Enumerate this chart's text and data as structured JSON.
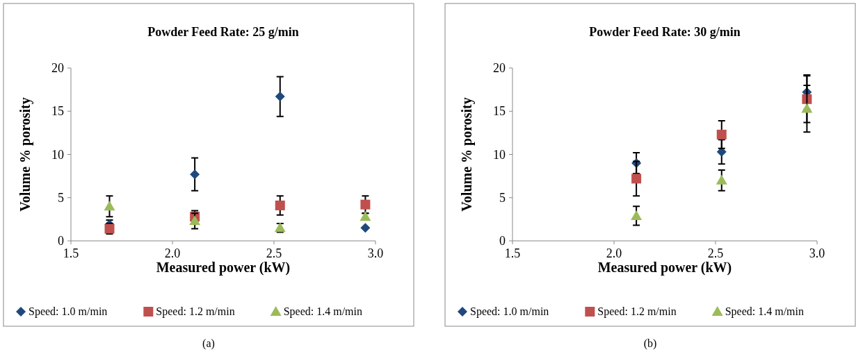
{
  "chart_data": [
    {
      "type": "scatter",
      "title": "Powder Feed Rate: 25 g/min",
      "xlabel": "Measured power (kW)",
      "ylabel": "Volume % porosity",
      "xlim": [
        1.5,
        3.0
      ],
      "xticks": [
        {
          "value": 1.5,
          "label": "1.5"
        },
        {
          "value": 2.0,
          "label": "2.0"
        },
        {
          "value": 2.5,
          "label": "2.5"
        },
        {
          "value": 3.0,
          "label": "3.0"
        }
      ],
      "ylim": [
        0,
        20
      ],
      "yticks": [
        0,
        5,
        10,
        15,
        20
      ],
      "legend": "bottom",
      "grid": false,
      "annotations": [
        "(a)"
      ],
      "series": [
        {
          "name": "Speed: 1.0 m/min",
          "color": "#1f497d",
          "marker": "diamond",
          "x": [
            1.69,
            2.11,
            2.53,
            2.95
          ],
          "values": [
            1.9,
            7.7,
            16.7,
            1.5
          ],
          "errors": [
            0.5,
            1.9,
            2.3,
            null
          ]
        },
        {
          "name": "Speed: 1.2 m/min",
          "color": "#c0504d",
          "marker": "square",
          "x": [
            1.69,
            2.11,
            2.53,
            2.95
          ],
          "values": [
            1.4,
            2.8,
            4.1,
            4.2
          ],
          "errors": [
            0.6,
            0.7,
            1.1,
            1.0
          ]
        },
        {
          "name": "Speed: 1.4 m/min",
          "color": "#9bbb59",
          "marker": "triangle",
          "x": [
            1.69,
            2.11,
            2.53,
            2.95
          ],
          "values": [
            4.0,
            2.3,
            1.5,
            2.8
          ],
          "errors": [
            1.2,
            0.9,
            0.5,
            0.4
          ]
        }
      ]
    },
    {
      "type": "scatter",
      "title": "Powder Feed Rate: 30 g/min",
      "xlabel": "Measured power (kW)",
      "ylabel": "Volume % porosity",
      "xlim": [
        1.5,
        3.0
      ],
      "xticks": [
        {
          "value": 1.5,
          "label": "1.5"
        },
        {
          "value": 2.0,
          "label": "2.0"
        },
        {
          "value": 2.5,
          "label": "2.5"
        },
        {
          "value": 3.0,
          "label": "3.0"
        }
      ],
      "ylim": [
        0,
        20
      ],
      "yticks": [
        0,
        5,
        10,
        15,
        20
      ],
      "legend": "bottom",
      "grid": false,
      "annotations": [
        "(b)"
      ],
      "series": [
        {
          "name": "Speed: 1.0 m/min",
          "color": "#1f497d",
          "marker": "diamond",
          "x": [
            2.11,
            2.53,
            2.95
          ],
          "values": [
            9.0,
            10.3,
            17.2
          ],
          "errors": [
            1.2,
            1.4,
            2.0
          ]
        },
        {
          "name": "Speed: 1.2 m/min",
          "color": "#c0504d",
          "marker": "square",
          "x": [
            2.11,
            2.53,
            2.95
          ],
          "values": [
            7.2,
            12.3,
            16.4
          ],
          "errors": [
            2.0,
            1.6,
            2.7
          ]
        },
        {
          "name": "Speed: 1.4 m/min",
          "color": "#9bbb59",
          "marker": "triangle",
          "x": [
            2.11,
            2.53,
            2.95
          ],
          "values": [
            2.9,
            7.0,
            15.3
          ],
          "errors": [
            1.1,
            1.2,
            2.7
          ]
        }
      ]
    }
  ]
}
